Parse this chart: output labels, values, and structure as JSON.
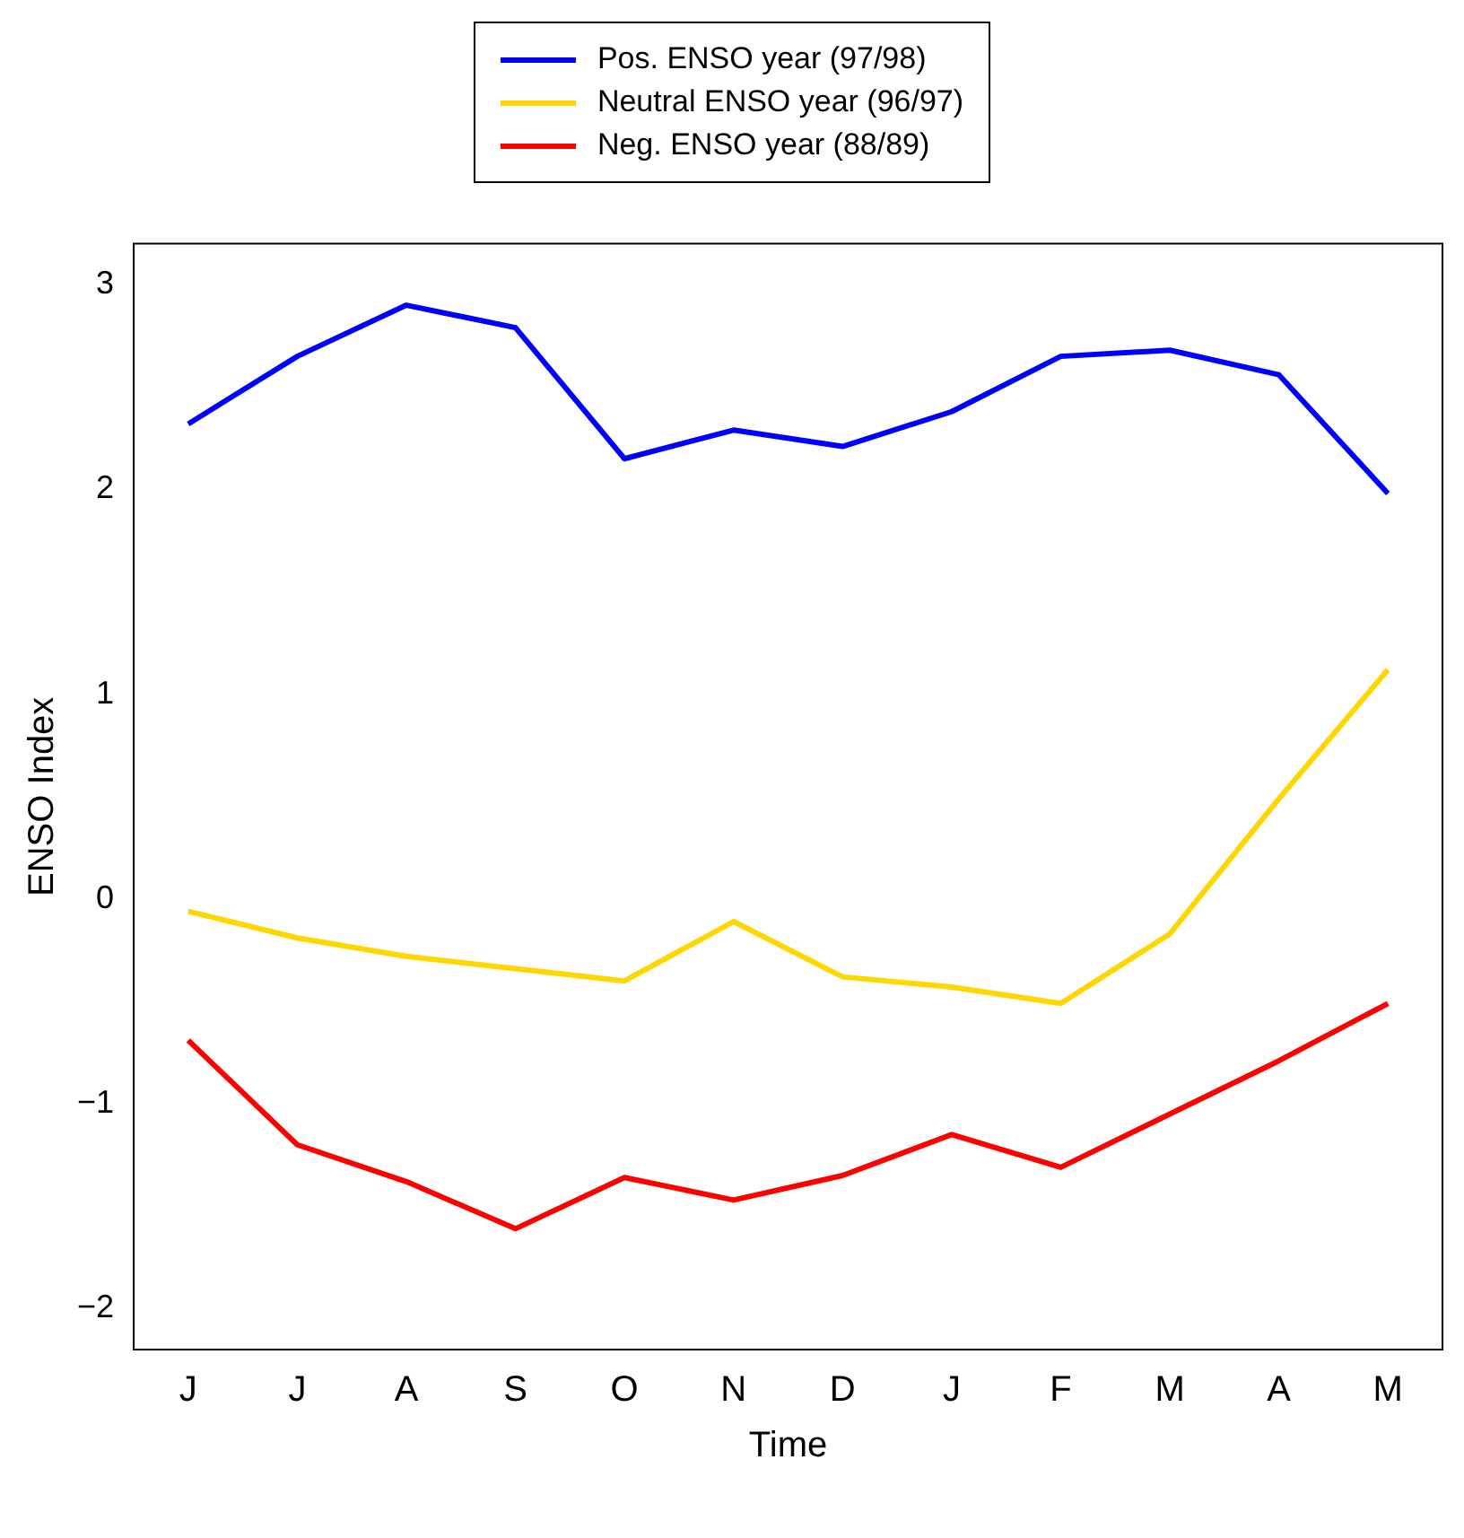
{
  "chart_data": {
    "type": "line",
    "xlabel": "Time",
    "ylabel": "ENSO Index",
    "categories": [
      "J",
      "J",
      "A",
      "S",
      "O",
      "N",
      "D",
      "J",
      "F",
      "M",
      "A",
      "M"
    ],
    "series": [
      {
        "name": "Pos. ENSO year (97/98)",
        "color": "#0000ff",
        "values": [
          2.32,
          2.65,
          2.9,
          2.79,
          2.15,
          2.29,
          2.21,
          2.38,
          2.65,
          2.68,
          2.56,
          1.98
        ]
      },
      {
        "name": "Neutral ENSO year (96/97)",
        "color": "#ffd700",
        "values": [
          -0.06,
          -0.19,
          -0.28,
          -0.34,
          -0.4,
          -0.11,
          -0.38,
          -0.43,
          -0.51,
          -0.17,
          0.49,
          1.12
        ]
      },
      {
        "name": "Neg. ENSO year (88/89)",
        "color": "#ff0000",
        "values": [
          -0.69,
          -1.2,
          -1.38,
          -1.61,
          -1.36,
          -1.47,
          -1.35,
          -1.15,
          -1.31,
          -1.05,
          -0.79,
          -0.51
        ]
      }
    ],
    "ylim": [
      -2.2,
      3.2
    ],
    "yticks": [
      -2,
      -1,
      0,
      1,
      2,
      3
    ],
    "grid": false,
    "legend": "top",
    "marker": "none",
    "line_style": "solid"
  }
}
